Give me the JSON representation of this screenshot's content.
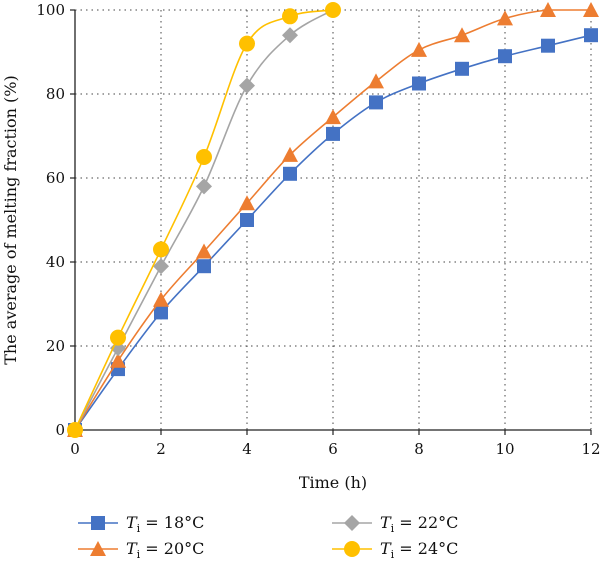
{
  "chart_data": {
    "type": "line",
    "xlabel": "Time (h)",
    "ylabel": "The average of melting fraction (%)",
    "xlim": [
      0,
      12
    ],
    "ylim": [
      0,
      100
    ],
    "xticks": [
      0,
      2,
      4,
      6,
      8,
      10,
      12
    ],
    "yticks": [
      0,
      20,
      40,
      60,
      80,
      100
    ],
    "grid": "dotted",
    "legend_position": "bottom",
    "series": [
      {
        "name": "Ti = 18°C",
        "legend": {
          "base": "T",
          "sub": "i",
          "rest": " = 18°C"
        },
        "color": "#4472C4",
        "marker": "square",
        "x": [
          0,
          1,
          2,
          3,
          4,
          5,
          6,
          7,
          8,
          9,
          10,
          11,
          12
        ],
        "y": [
          0,
          14.5,
          28,
          39,
          50,
          61,
          70.5,
          78,
          82.5,
          86,
          89,
          91.5,
          94
        ]
      },
      {
        "name": "Ti = 20°C",
        "legend": {
          "base": "T",
          "sub": "i",
          "rest": " = 20°C"
        },
        "color": "#ED7D31",
        "marker": "triangle",
        "x": [
          0,
          1,
          2,
          3,
          4,
          5,
          6,
          7,
          8,
          9,
          10,
          11,
          12
        ],
        "y": [
          0,
          16.5,
          31,
          42.5,
          54,
          65.5,
          74.5,
          83,
          90.5,
          94,
          98,
          100,
          100
        ]
      },
      {
        "name": "Ti = 22°C",
        "legend": {
          "base": "T",
          "sub": "i",
          "rest": " = 22°C"
        },
        "color": "#A5A5A5",
        "marker": "diamond",
        "x": [
          0,
          1,
          2,
          3,
          4,
          5,
          6
        ],
        "y": [
          0,
          19.5,
          39,
          58,
          82,
          94,
          100
        ]
      },
      {
        "name": "Ti = 24°C",
        "legend": {
          "base": "T",
          "sub": "i",
          "rest": " = 24°C"
        },
        "color": "#FFC000",
        "marker": "circle",
        "x": [
          0,
          1,
          2,
          3,
          4,
          5,
          6
        ],
        "y": [
          0,
          22,
          43,
          65,
          92,
          98.5,
          100
        ]
      }
    ]
  }
}
